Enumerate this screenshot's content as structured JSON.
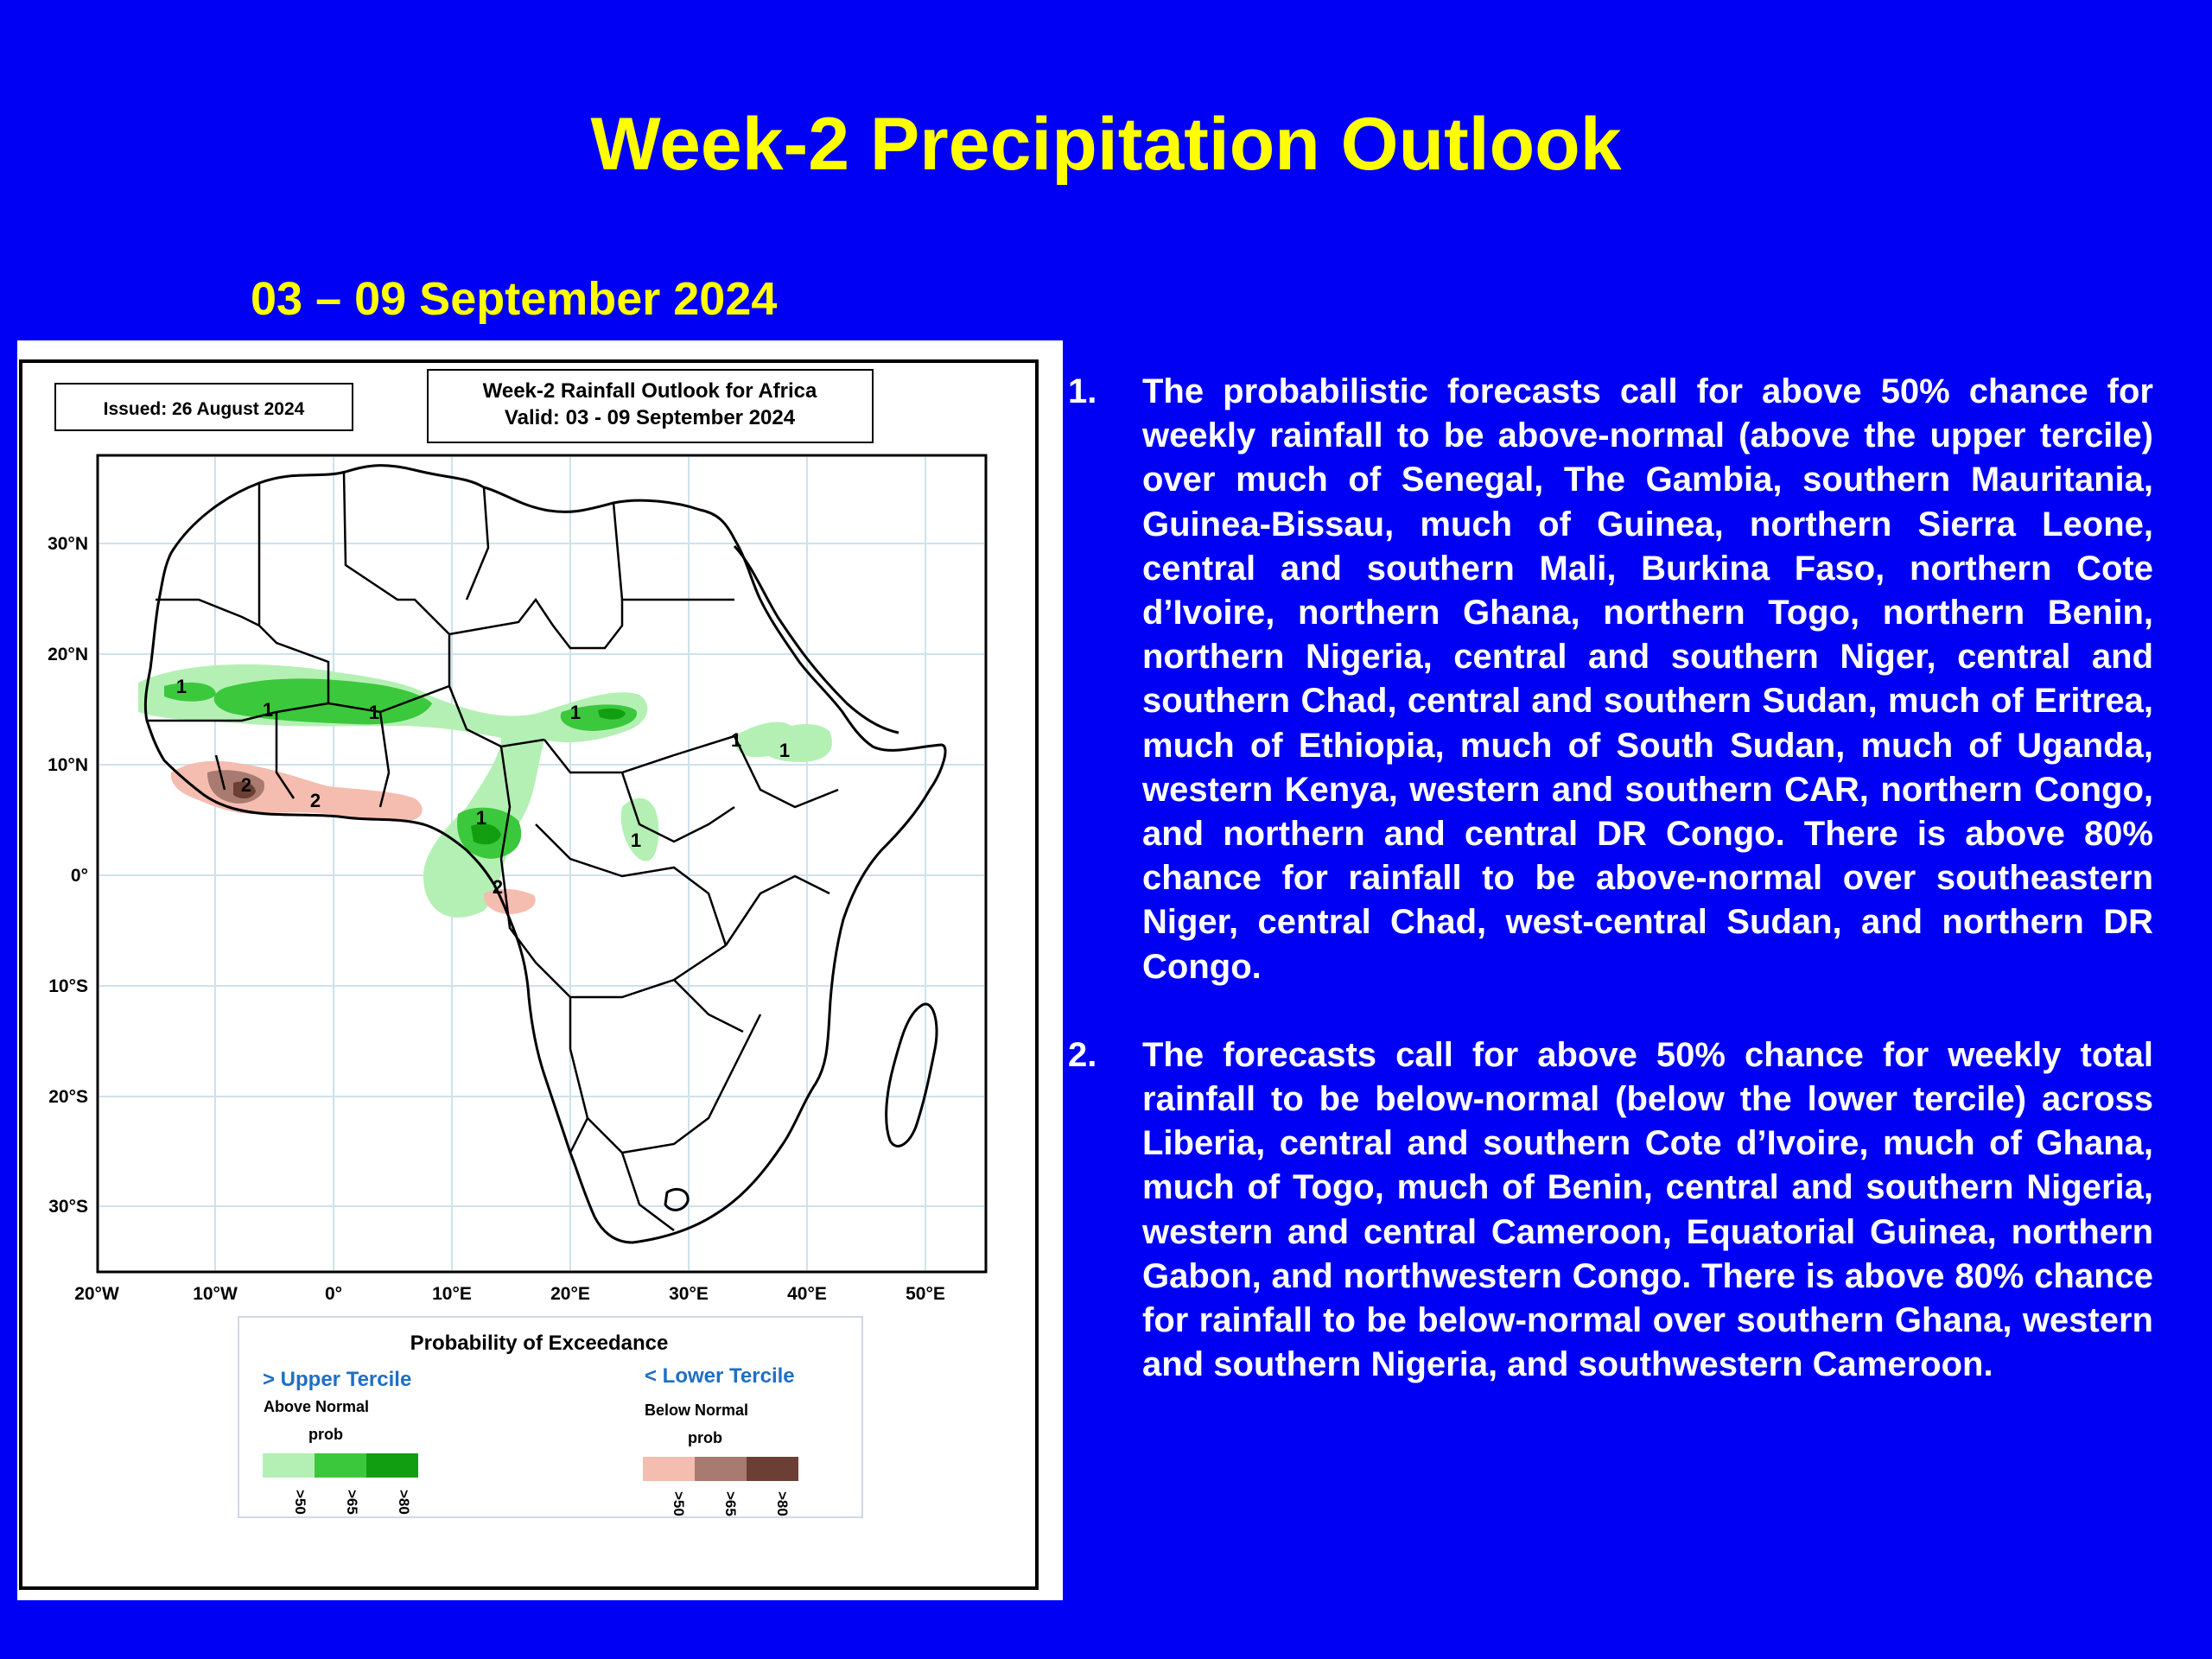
{
  "slide": {
    "title": "Week-2 Precipitation Outlook",
    "date_range": "03 – 09 September 2024",
    "background_color": "#0000f5",
    "title_color": "#ffff00"
  },
  "map": {
    "issued": "Issued: 26 August 2024",
    "title_line1": "Week-2 Rainfall Outlook for Africa",
    "title_line2": "Valid: 03 - 09 September 2024",
    "lat_labels": [
      "30°N",
      "20°N",
      "10°N",
      "0°",
      "10°S",
      "20°S",
      "30°S"
    ],
    "lon_labels": [
      "20°W",
      "10°W",
      "0°",
      "10°E",
      "20°E",
      "30°E",
      "40°E",
      "50°E"
    ],
    "region_labels": [
      "1",
      "1",
      "1",
      "1",
      "1",
      "1",
      "1",
      "1",
      "2",
      "2",
      "2"
    ],
    "legend": {
      "title": "Probability of Exceedance",
      "upper": {
        "heading": "> Upper Tercile",
        "sub1": "Above Normal",
        "sub2": "prob",
        "ticks": [
          ">50",
          ">65",
          ">80"
        ],
        "colors": [
          "#b4f0b4",
          "#3cc83c",
          "#119f11"
        ]
      },
      "lower": {
        "heading": "< Lower Tercile",
        "sub1": "Below Normal",
        "sub2": "prob",
        "ticks": [
          ">50",
          ">65",
          ">80"
        ],
        "colors": [
          "#f5bcb0",
          "#a87a70",
          "#6b3f33"
        ]
      }
    }
  },
  "notes": [
    {
      "number": "1.",
      "text": "The probabilistic forecasts call for above 50% chance for weekly rainfall to be above-normal (above the upper tercile) over much of Senegal, The Gambia, southern Mauritania, Guinea-Bissau, much of Guinea, northern Sierra Leone, central and southern Mali, Burkina Faso, northern Cote d’Ivoire, northern Ghana, northern Togo, northern Benin, northern Nigeria, central and southern Niger, central and southern Chad, central and southern Sudan, much of Eritrea, much of Ethiopia, much of South Sudan, much of Uganda, western Kenya, western and southern CAR, northern Congo, and northern and central DR Congo. There is above 80% chance for rainfall to be above-normal over southeastern Niger, central Chad, west-central Sudan, and northern DR Congo."
    },
    {
      "number": "2.",
      "text": "The forecasts call for above 50% chance for weekly total rainfall to be below-normal (below the lower tercile) across Liberia, central and southern Cote d’Ivoire, much of Ghana, much of Togo, much of Benin, central and southern Nigeria, western and central Cameroon, Equatorial Guinea, northern Gabon, and northwestern Congo. There is above 80% chance for rainfall to be below-normal over southern Ghana, western and southern Nigeria, and southwestern Cameroon."
    }
  ]
}
